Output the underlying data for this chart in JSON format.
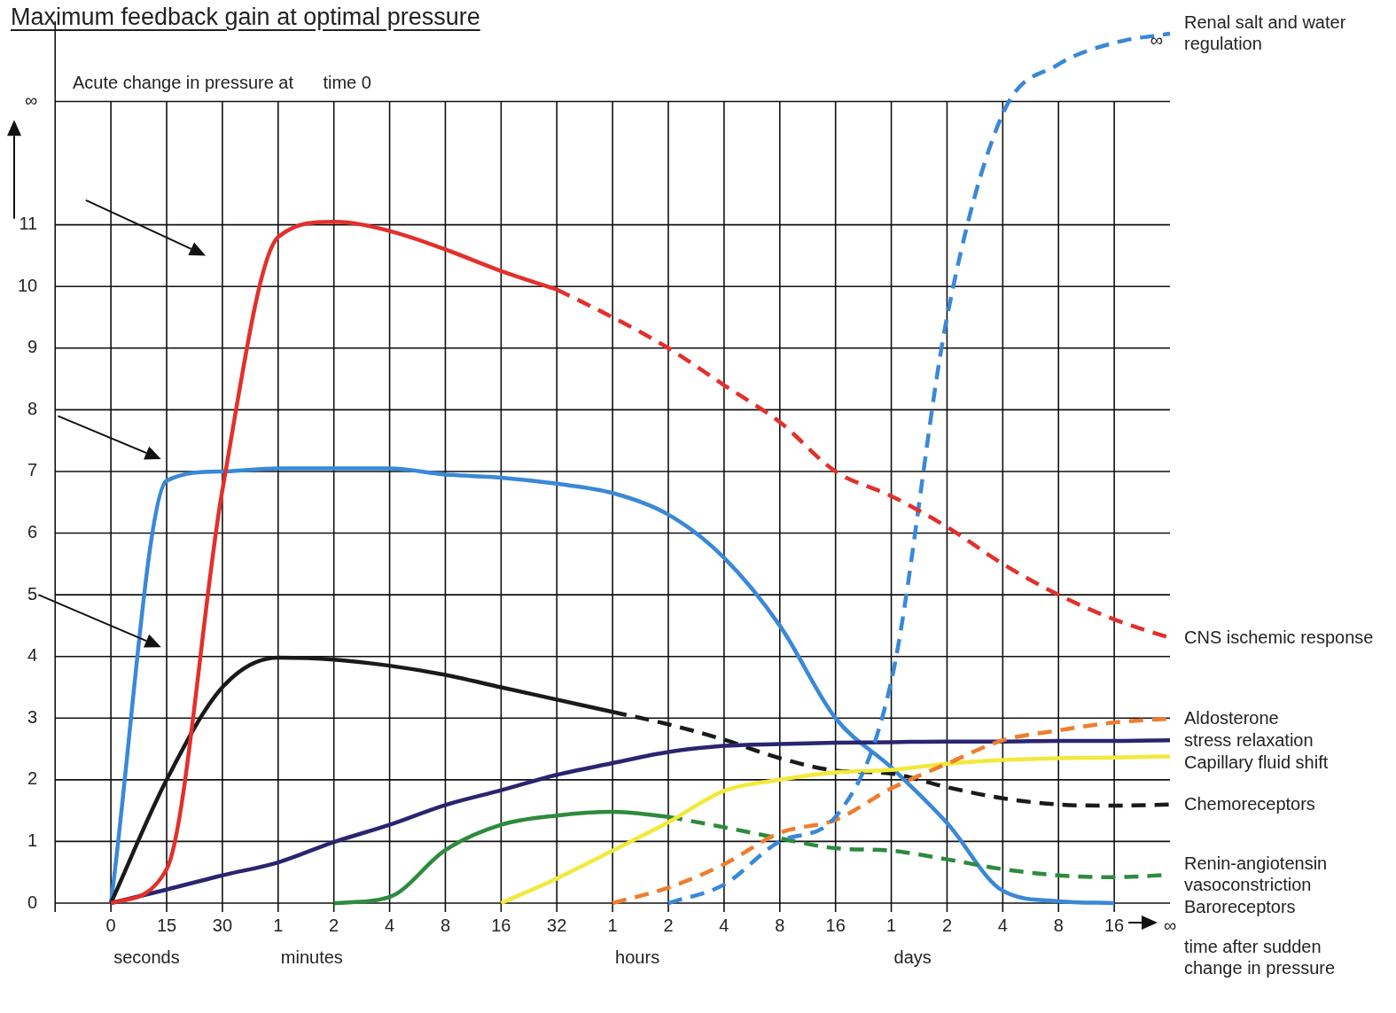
{
  "chart_data": {
    "type": "line",
    "title": "Maximum feedback gain at optimal pressure",
    "subtitle": "Acute change in pressure at      time 0",
    "xlabel": "time after sudden change in pressure",
    "categories": [
      null,
      "0",
      "15",
      "30",
      "1",
      "2",
      "4",
      "8",
      "16",
      "32",
      "1",
      "2",
      "4",
      "8",
      "16",
      "1",
      "2",
      "4",
      "8",
      "16",
      "∞"
    ],
    "ylim": [
      0,
      14.3
    ],
    "yticks": [
      0,
      1,
      2,
      3,
      4,
      5,
      6,
      7,
      8,
      9,
      10,
      11,
      {
        "value": 13,
        "label": "∞"
      }
    ],
    "grid": true,
    "annotations": [
      "seconds",
      "minutes",
      "hours",
      "days",
      "∞"
    ],
    "series": [
      {
        "color": "#e3302b",
        "values": [
          null,
          0,
          0.55,
          6.7,
          10.8,
          11.05,
          10.9,
          10.6,
          10.25,
          9.95,
          null,
          null,
          null,
          null,
          null,
          null,
          null,
          null,
          null,
          null,
          null
        ]
      },
      {
        "name": "CNS ischemic response",
        "color": "#e3302b",
        "line_style": "dashed",
        "values": [
          null,
          null,
          null,
          null,
          null,
          null,
          null,
          null,
          null,
          9.95,
          9.5,
          9.0,
          8.4,
          7.8,
          7.0,
          6.6,
          6.1,
          5.5,
          5.0,
          4.6,
          4.3
        ]
      },
      {
        "name": "Renal salt and water regulation",
        "color": "#3a88d8",
        "line_style": "dashed",
        "values": [
          null,
          null,
          null,
          null,
          null,
          null,
          null,
          null,
          null,
          null,
          null,
          0,
          0.3,
          1.0,
          1.4,
          3.6,
          9.5,
          12.8,
          13.6,
          13.95,
          14.1
        ]
      },
      {
        "name": "Aldosterone",
        "color": "#ef7d2d",
        "line_style": "dashed",
        "values": [
          null,
          null,
          null,
          null,
          null,
          null,
          null,
          null,
          null,
          null,
          0,
          0.25,
          0.63,
          1.14,
          1.35,
          1.86,
          2.26,
          2.64,
          2.8,
          2.93,
          2.99
        ]
      },
      {
        "name": "stress relaxation",
        "color": "#2b2470",
        "values": [
          null,
          0,
          0.22,
          0.45,
          0.66,
          0.99,
          1.27,
          1.59,
          1.83,
          2.08,
          2.27,
          2.45,
          2.55,
          2.58,
          2.6,
          2.61,
          2.62,
          2.62,
          2.63,
          2.63,
          2.64
        ]
      },
      {
        "name": "Capillary fluid shift",
        "color": "#f2e93a",
        "values": [
          null,
          null,
          null,
          null,
          null,
          null,
          null,
          null,
          0,
          0.4,
          0.85,
          1.31,
          1.82,
          2.0,
          2.12,
          2.16,
          2.26,
          2.32,
          2.35,
          2.36,
          2.38
        ]
      },
      {
        "color": "#1a1a1a",
        "values": [
          null,
          0,
          2.0,
          3.5,
          3.98,
          3.95,
          3.85,
          3.7,
          3.5,
          3.3,
          3.1,
          null,
          null,
          null,
          null,
          null,
          null,
          null,
          null,
          null,
          null
        ]
      },
      {
        "name": "Chemoreceptors",
        "color": "#1a1a1a",
        "line_style": "dashed",
        "values": [
          null,
          null,
          null,
          null,
          null,
          null,
          null,
          null,
          null,
          null,
          3.1,
          2.9,
          2.65,
          2.35,
          2.15,
          2.1,
          1.88,
          1.7,
          1.6,
          1.58,
          1.6
        ]
      },
      {
        "color": "#2e8a3e",
        "values": [
          null,
          null,
          null,
          null,
          null,
          0,
          0.1,
          0.86,
          1.27,
          1.42,
          1.48,
          1.4,
          null,
          null,
          null,
          null,
          null,
          null,
          null,
          null,
          null
        ]
      },
      {
        "name": "Renin-angiotensin vasoconstriction",
        "color": "#2e8a3e",
        "line_style": "dashed",
        "values": [
          null,
          null,
          null,
          null,
          null,
          null,
          null,
          null,
          null,
          null,
          null,
          1.4,
          1.23,
          1.05,
          0.89,
          0.85,
          0.71,
          0.55,
          0.45,
          0.42,
          0.46
        ]
      },
      {
        "name": "Baroreceptors",
        "color": "#3a88d8",
        "values": [
          null,
          0,
          6.85,
          7.0,
          7.05,
          7.05,
          7.05,
          6.95,
          6.9,
          6.8,
          6.65,
          6.3,
          5.6,
          4.5,
          3.0,
          2.2,
          1.3,
          0.2,
          0.03,
          0,
          null
        ]
      }
    ]
  }
}
